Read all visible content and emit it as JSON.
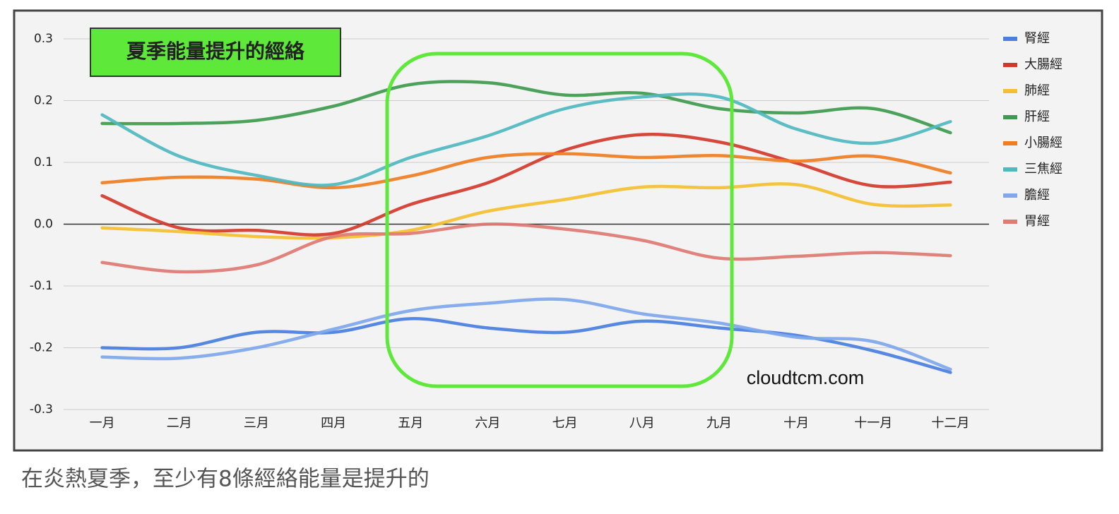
{
  "chart_data": {
    "type": "line",
    "annotations": {
      "title_box": "夏季能量提升的經絡",
      "watermark": "cloudtcm.com"
    },
    "caption": "在炎熱夏季，至少有8條經絡能量是提升的",
    "categories": [
      "一月",
      "二月",
      "三月",
      "四月",
      "五月",
      "六月",
      "七月",
      "八月",
      "九月",
      "十月",
      "十一月",
      "十二月"
    ],
    "ylim": [
      -0.3,
      0.3
    ],
    "yticks": [
      0.3,
      0.2,
      0.1,
      {
        "value": 0,
        "label": "0.0"
      },
      -0.1,
      -0.2,
      -0.3
    ],
    "grid": true,
    "legend": "right",
    "smooth": true,
    "series": [
      {
        "name": "腎經",
        "color": "#4a7fe0",
        "values": [
          -0.2,
          -0.2,
          -0.175,
          -0.175,
          -0.153,
          -0.168,
          -0.175,
          -0.157,
          -0.168,
          -0.18,
          -0.205,
          -0.24
        ]
      },
      {
        "name": "大腸經",
        "color": "#d2392b",
        "values": [
          0.046,
          -0.006,
          -0.01,
          -0.015,
          0.032,
          0.067,
          0.12,
          0.145,
          0.133,
          0.099,
          0.062,
          0.068
        ]
      },
      {
        "name": "肺經",
        "color": "#f4c032",
        "values": [
          -0.006,
          -0.012,
          -0.02,
          -0.022,
          -0.01,
          0.021,
          0.04,
          0.06,
          0.059,
          0.064,
          0.032,
          0.031
        ]
      },
      {
        "name": "肝經",
        "color": "#3e9b4d",
        "values": [
          0.163,
          0.163,
          0.168,
          0.191,
          0.226,
          0.229,
          0.209,
          0.212,
          0.187,
          0.18,
          0.187,
          0.148
        ]
      },
      {
        "name": "小腸經",
        "color": "#ef7d22",
        "values": [
          0.067,
          0.076,
          0.073,
          0.059,
          0.078,
          0.108,
          0.114,
          0.108,
          0.111,
          0.102,
          0.11,
          0.083
        ]
      },
      {
        "name": "三焦經",
        "color": "#4fb9c0",
        "values": [
          0.177,
          0.11,
          0.079,
          0.064,
          0.108,
          0.143,
          0.187,
          0.206,
          0.206,
          0.154,
          0.131,
          0.166
        ]
      },
      {
        "name": "膽經",
        "color": "#7fa7ec",
        "values": [
          -0.215,
          -0.217,
          -0.2,
          -0.17,
          -0.14,
          -0.128,
          -0.122,
          -0.145,
          -0.16,
          -0.183,
          -0.19,
          -0.235
        ]
      },
      {
        "name": "胃經",
        "color": "#e07a73",
        "values": [
          -0.062,
          -0.077,
          -0.066,
          -0.02,
          -0.015,
          0.0,
          -0.008,
          -0.026,
          -0.055,
          -0.052,
          -0.046,
          -0.051
        ]
      }
    ]
  }
}
